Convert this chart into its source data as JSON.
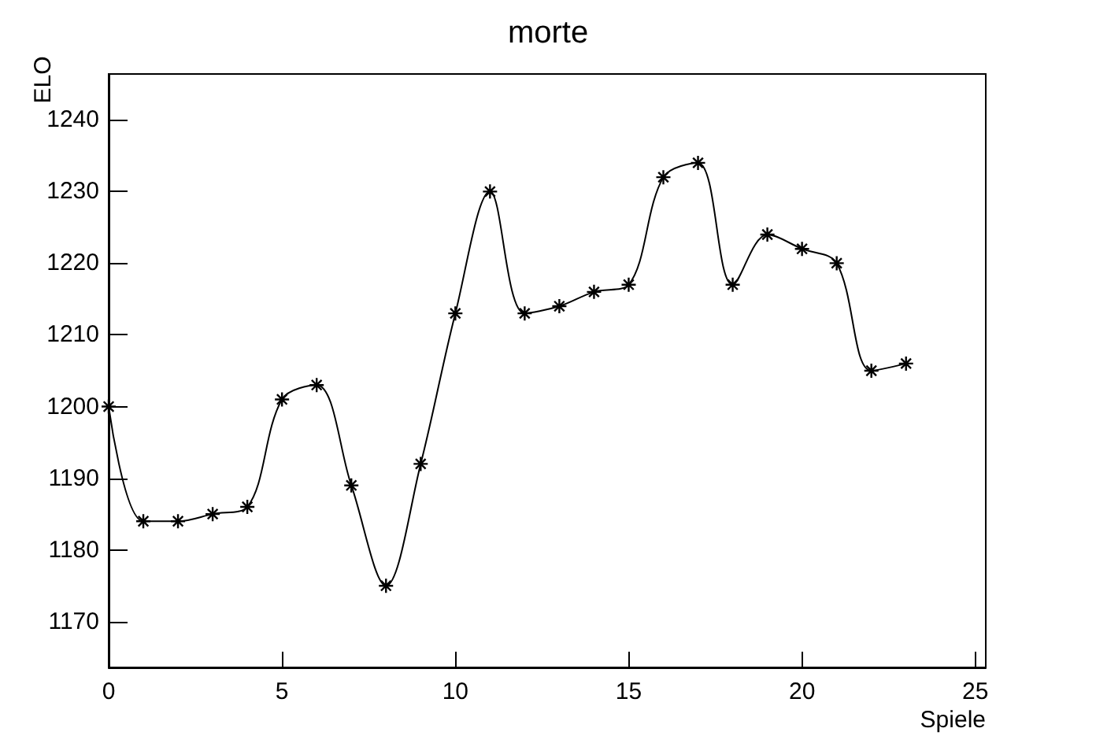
{
  "chart_data": {
    "type": "line",
    "title": "morte",
    "xlabel": "Spiele",
    "ylabel": "ELO",
    "x": [
      0,
      1,
      2,
      3,
      4,
      5,
      6,
      7,
      8,
      9,
      10,
      11,
      12,
      13,
      14,
      15,
      16,
      17,
      18,
      19,
      20,
      21,
      22,
      23
    ],
    "series": [
      {
        "color": "#000000",
        "values": [
          1200,
          1184,
          1184,
          1185,
          1186,
          1201,
          1203,
          1189,
          1175,
          1192,
          1213,
          1230,
          1213,
          1214,
          1216,
          1217,
          1232,
          1234,
          1217,
          1224,
          1222,
          1220,
          1205,
          1206
        ]
      }
    ],
    "xlim": [
      0,
      25.3
    ],
    "ylim": [
      1163.6,
      1246.4
    ],
    "xticks": [
      0,
      5,
      10,
      15,
      20,
      25
    ],
    "yticks": [
      1170,
      1180,
      1190,
      1200,
      1210,
      1220,
      1230,
      1240
    ],
    "grid": false,
    "marker": "cross",
    "line_style": "solid"
  }
}
